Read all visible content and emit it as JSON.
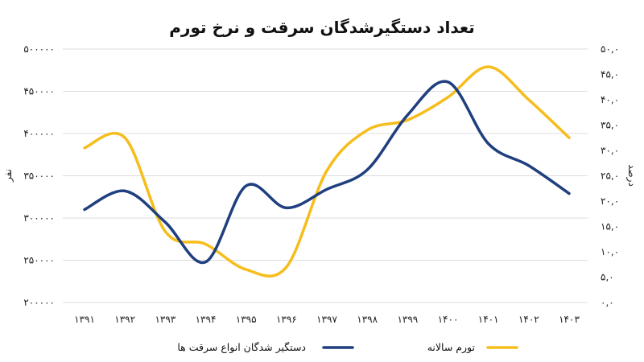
{
  "chart_data": {
    "type": "line",
    "title": "تعداد دستگیرشدگان سرقت و نرخ تورم",
    "categories": [
      "۱۳۹۱",
      "۱۳۹۲",
      "۱۳۹۳",
      "۱۳۹۴",
      "۱۳۹۵",
      "۱۳۹۶",
      "۱۳۹۷",
      "۱۳۹۸",
      "۱۳۹۹",
      "۱۴۰۰",
      "۱۴۰۱",
      "۱۴۰۲",
      "۱۴۰۳"
    ],
    "y_left": {
      "label": "نفر",
      "range": [
        200000,
        500000
      ],
      "ticks": [
        "۲۰۰۰۰۰",
        "۲۵۰۰۰۰",
        "۳۰۰۰۰۰",
        "۳۵۰۰۰۰",
        "۴۰۰۰۰۰",
        "۴۵۰۰۰۰",
        "۵۰۰۰۰۰"
      ],
      "tick_values": [
        200000,
        250000,
        300000,
        350000,
        400000,
        450000,
        500000
      ]
    },
    "y_right": {
      "label": "درصد",
      "range": [
        0,
        50
      ],
      "ticks": [
        "۰,۰",
        "۵,۰",
        "۱۰,۰",
        "۱۵,۰",
        "۲۰,۰",
        "۲۵,۰",
        "۳۰,۰",
        "۳۵,۰",
        "۴۰,۰",
        "۴۵,۰",
        "۵۰,۰"
      ],
      "tick_values": [
        0,
        5,
        10,
        15,
        20,
        25,
        30,
        35,
        40,
        45,
        50
      ]
    },
    "grid": true,
    "legend_position": "bottom",
    "series": [
      {
        "name": "دستگیر شدگان انواع سرقت ها",
        "axis": "left",
        "color": "#1f3f7f",
        "values": [
          310000,
          332000,
          295000,
          248000,
          338000,
          312000,
          334000,
          357000,
          422000,
          461000,
          388000,
          362000,
          329000
        ]
      },
      {
        "name": "تورم سالانه",
        "axis": "right",
        "color": "#f6bd1c",
        "values": [
          30.5,
          32.5,
          14.0,
          11.5,
          6.5,
          7.0,
          26.0,
          34.0,
          36.0,
          40.5,
          46.5,
          40.0,
          32.5
        ]
      }
    ]
  }
}
